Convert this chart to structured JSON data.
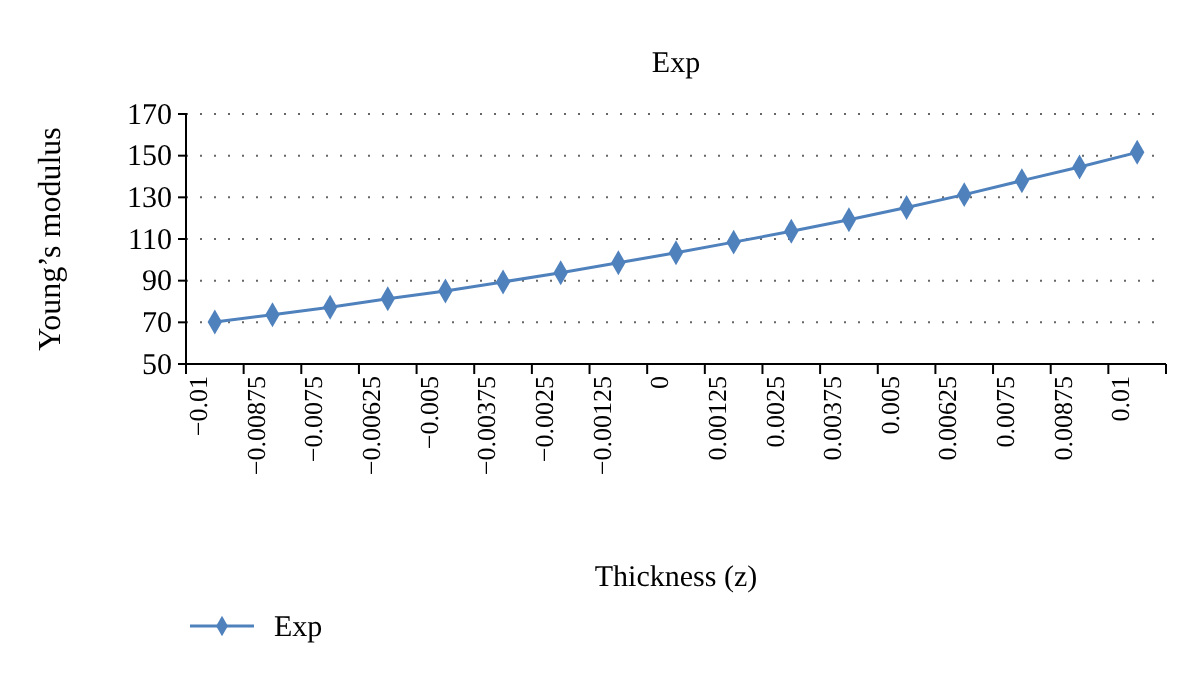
{
  "chart_data": {
    "type": "line",
    "title": "Exp",
    "xlabel": "Thickness (z)",
    "ylabel": "Young’s modulus",
    "categories": [
      "−0.01",
      "−0.00875",
      "−0.0075",
      "−0.00625",
      "−0.005",
      "−0.00375",
      "−0.0025",
      "−0.00125",
      "0",
      "0.00125",
      "0.0025",
      "0.00375",
      "0.005",
      "0.00625",
      "0.0075",
      "0.00875",
      "0.01"
    ],
    "series": [
      {
        "name": "Exp",
        "color": "#4f81bd",
        "values": [
          70.2,
          73.6,
          77.2,
          81.3,
          85,
          89.4,
          93.8,
          98.6,
          103.4,
          108.5,
          113.7,
          119.2,
          125.1,
          131.3,
          138,
          144.6,
          151.6
        ]
      }
    ],
    "ylim": [
      50,
      170
    ],
    "yticks": [
      50,
      70,
      90,
      110,
      130,
      150,
      170
    ],
    "grid": "y",
    "legend": "bottom left",
    "marker": "diamond",
    "line_style": "solid"
  }
}
